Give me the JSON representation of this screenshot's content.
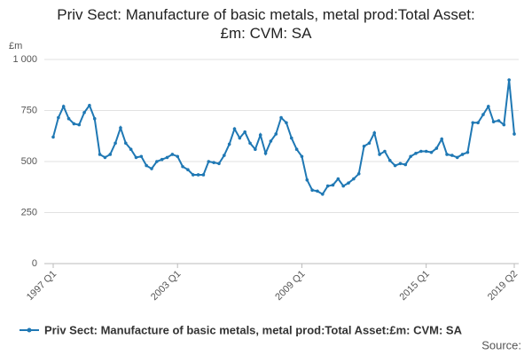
{
  "chart_data": {
    "type": "line",
    "title": "Priv Sect: Manufacture of basic metals, metal prod:Total Asset:£m: CVM: SA",
    "y_label": "£m",
    "source": "Source:",
    "categories": [
      "1997 Q1",
      null,
      null,
      null,
      null,
      null,
      null,
      null,
      null,
      null,
      null,
      null,
      null,
      null,
      null,
      null,
      null,
      null,
      null,
      null,
      null,
      null,
      null,
      null,
      "2003 Q1",
      null,
      null,
      null,
      null,
      null,
      null,
      null,
      null,
      null,
      null,
      null,
      null,
      null,
      null,
      null,
      null,
      null,
      null,
      null,
      null,
      null,
      null,
      null,
      "2009 Q1",
      null,
      null,
      null,
      null,
      null,
      null,
      null,
      null,
      null,
      null,
      null,
      null,
      null,
      null,
      null,
      null,
      null,
      null,
      null,
      null,
      null,
      null,
      null,
      "2015 Q1",
      null,
      null,
      null,
      null,
      null,
      null,
      null,
      null,
      null,
      null,
      null,
      null,
      null,
      null,
      null,
      null,
      "2019 Q2"
    ],
    "series": [
      {
        "name": "Priv Sect: Manufacture of basic metals, metal prod:Total Asset:£m: CVM: SA",
        "color": "#1f78b4",
        "values": [
          620,
          715,
          770,
          710,
          685,
          680,
          740,
          775,
          710,
          535,
          520,
          535,
          590,
          665,
          590,
          560,
          520,
          525,
          480,
          465,
          500,
          510,
          520,
          535,
          525,
          475,
          460,
          435,
          435,
          435,
          500,
          495,
          490,
          530,
          585,
          660,
          615,
          645,
          590,
          560,
          630,
          540,
          600,
          635,
          715,
          690,
          615,
          560,
          525,
          410,
          360,
          355,
          340,
          380,
          385,
          415,
          380,
          395,
          415,
          440,
          575,
          590,
          640,
          535,
          550,
          505,
          480,
          490,
          485,
          525,
          540,
          550,
          550,
          545,
          565,
          610,
          535,
          530,
          520,
          535,
          545,
          690,
          690,
          730,
          770,
          695,
          700,
          680,
          900,
          635
        ]
      }
    ],
    "ylim": [
      0,
      1000
    ],
    "yticks": [
      0,
      250,
      500,
      750,
      {
        "value": 1000,
        "label": "1 000"
      }
    ],
    "grid": true
  }
}
